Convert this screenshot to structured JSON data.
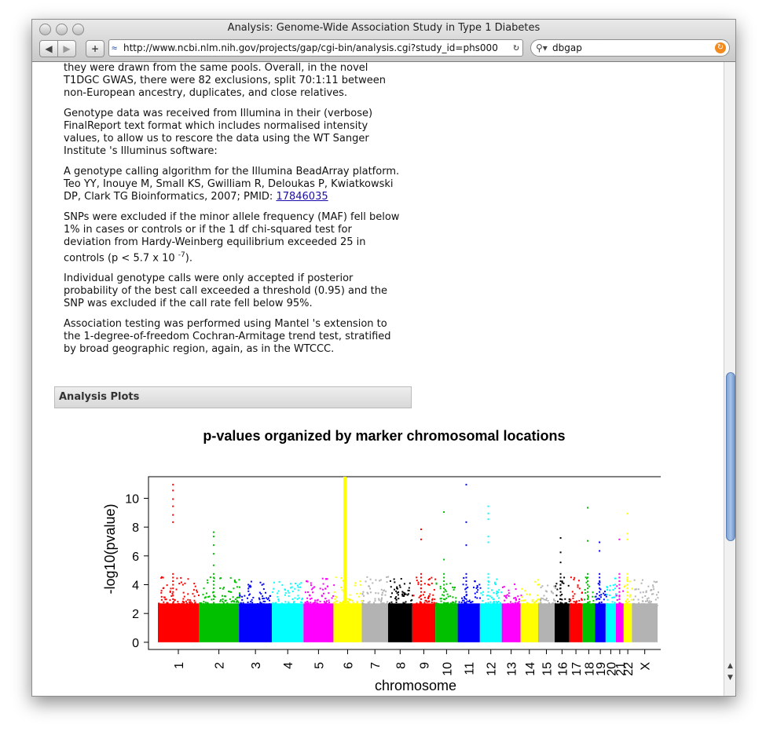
{
  "window": {
    "title": "Analysis: Genome-Wide Association Study in Type 1 Diabetes"
  },
  "toolbar": {
    "back_glyph": "◀",
    "forward_glyph": "▶",
    "add_glyph": "+",
    "url": "http://www.ncbi.nlm.nih.gov/projects/gap/cgi-bin/analysis.cgi?study_id=phs000",
    "reload_glyph": "↻",
    "search_value": "dbgap",
    "search_go_glyph": "↻"
  },
  "article": {
    "p1": "they were drawn from the same pools. Overall, in the novel T1DGC GWAS, there were 82 exclusions, split 70:1:11 between non-European ancestry, duplicates, and close relatives.",
    "p2": "Genotype data was received from Illumina in their (verbose) FinalReport text format which includes normalised intensity values, to allow us to rescore the data using the WT Sanger Institute 's Illuminus software:",
    "p3_text": "A genotype calling algorithm for the Illumina BeadArray platform. Teo YY, Inouye M, Small KS, Gwilliam R, Deloukas P, Kwiatkowski DP, Clark TG Bioinformatics, 2007; PMID:",
    "p3_link": "17846035",
    "p4_text": "SNPs were excluded if the minor allele frequency (MAF) fell below 1% in cases or controls or if the 1 df chi-squared test for deviation from Hardy-Weinberg equilibrium exceeded 25 in controls (p < 5.7 x 10",
    "p4_exp": "-7",
    "p4_end": ").",
    "p5": "Individual genotype calls were only accepted if posterior probability of the best call exceeded a threshold (0.95) and the SNP was excluded if the call rate fell below 95%.",
    "p6": "Association testing was performed using Mantel 's extension to the 1-degree-of-freedom Cochran-Armitage trend test, stratified by broad geographic region, again, as in the WTCCC."
  },
  "section": {
    "title": "Analysis Plots"
  },
  "chart_data": {
    "type": "scatter",
    "title": "p-values organized by marker chromosomal locations",
    "xlabel": "chromosome",
    "ylabel": "-log10(pvalue)",
    "ylim": [
      -0.5,
      11.5
    ],
    "yticks": [
      0,
      2,
      4,
      6,
      8,
      10
    ],
    "grid": false,
    "colors": [
      "#ff0000",
      "#00c000",
      "#0000ff",
      "#00ffff",
      "#ff00ff",
      "#ffff00",
      "#b3b3b3",
      "#000000"
    ],
    "chromosomes": [
      {
        "label": "1",
        "length": 247,
        "max": 11.0,
        "tops": [
          8.4,
          8.9,
          9.5,
          10.0,
          10.6,
          11.0
        ]
      },
      {
        "label": "2",
        "length": 243,
        "max": 7.7,
        "tops": [
          5.4,
          6.2,
          6.8,
          7.4,
          7.7
        ]
      },
      {
        "label": "3",
        "length": 199,
        "max": 4.3,
        "tops": []
      },
      {
        "label": "4",
        "length": 191,
        "max": 4.6,
        "tops": []
      },
      {
        "label": "5",
        "length": 181,
        "max": 4.5,
        "tops": []
      },
      {
        "label": "6",
        "length": 171,
        "max": 11.5,
        "tops": [
          6.2,
          7.6
        ]
      },
      {
        "label": "7",
        "length": 159,
        "max": 5.3,
        "tops": []
      },
      {
        "label": "8",
        "length": 146,
        "max": 5.0,
        "tops": []
      },
      {
        "label": "9",
        "length": 140,
        "max": 7.9,
        "tops": [
          7.2,
          7.9
        ]
      },
      {
        "label": "10",
        "length": 135,
        "max": 9.1,
        "tops": [
          5.8,
          9.1
        ]
      },
      {
        "label": "11",
        "length": 134,
        "max": 11.0,
        "tops": [
          6.8,
          8.4,
          11.0
        ]
      },
      {
        "label": "12",
        "length": 132,
        "max": 9.5,
        "tops": [
          7.0,
          7.4,
          8.6,
          9.0,
          9.5
        ]
      },
      {
        "label": "13",
        "length": 114,
        "max": 4.8,
        "tops": []
      },
      {
        "label": "14",
        "length": 106,
        "max": 4.5,
        "tops": []
      },
      {
        "label": "15",
        "length": 100,
        "max": 4.0,
        "tops": []
      },
      {
        "label": "16",
        "length": 89,
        "max": 7.3,
        "tops": [
          5.6,
          6.3,
          7.3
        ]
      },
      {
        "label": "17",
        "length": 79,
        "max": 6.0,
        "tops": [
          5.2,
          6.0
        ]
      },
      {
        "label": "18",
        "length": 76,
        "max": 9.4,
        "tops": [
          7.1,
          9.4
        ]
      },
      {
        "label": "19",
        "length": 64,
        "max": 7.0,
        "tops": [
          6.4,
          7.0
        ]
      },
      {
        "label": "20",
        "length": 62,
        "max": 5.5,
        "tops": [
          5.5
        ]
      },
      {
        "label": "21",
        "length": 47,
        "max": 7.2,
        "tops": [
          7.2
        ]
      },
      {
        "label": "22",
        "length": 50,
        "max": 9.0,
        "tops": [
          7.2,
          7.6,
          9.0
        ]
      },
      {
        "label": "X",
        "length": 155,
        "max": 4.4,
        "tops": []
      }
    ]
  }
}
